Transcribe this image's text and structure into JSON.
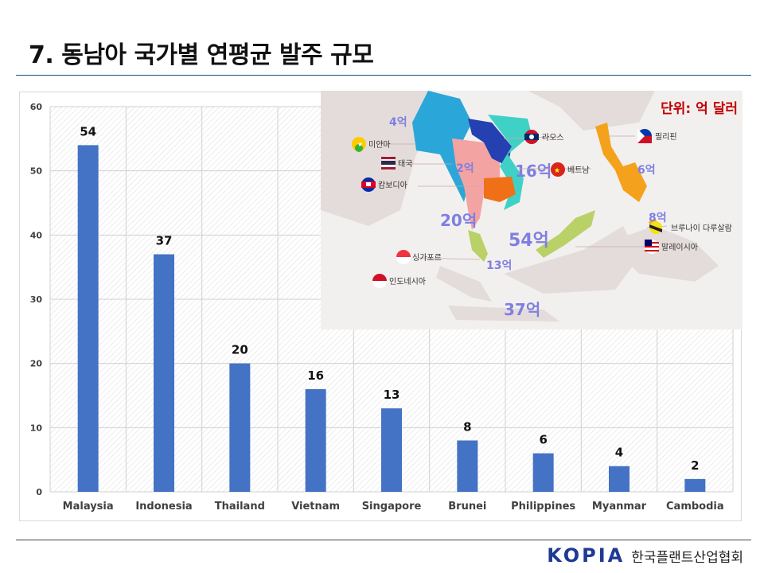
{
  "page": {
    "title": "7. 동남아 국가별 연평균 발주 규모"
  },
  "footer": {
    "logo_text": "KOPIA",
    "org_name": "한국플랜트산업협회"
  },
  "colors": {
    "bar": "#4472c4",
    "title_rule": "#1f4e79",
    "unit_text": "#c00000",
    "label_blue": "#7f7fe0"
  },
  "inset_map": {
    "unit_label": "단위: 억 달러",
    "countries": [
      {
        "name": "미얀마",
        "value_label": "4억",
        "flag": "myanmar-flag-icon"
      },
      {
        "name": "태국",
        "value_label": "20억",
        "flag": "thailand-flag-icon"
      },
      {
        "name": "캄보디아",
        "value_label": "2억",
        "flag": "cambodia-flag-icon"
      },
      {
        "name": "라오스",
        "value_label": "",
        "flag": "laos-flag-icon"
      },
      {
        "name": "베트남",
        "value_label": "16억",
        "flag": "vietnam-flag-icon"
      },
      {
        "name": "필리핀",
        "value_label": "6억",
        "flag": "philippines-flag-icon"
      },
      {
        "name": "브루나이 다루살람",
        "value_label": "8억",
        "flag": "brunei-flag-icon"
      },
      {
        "name": "말레이시아",
        "value_label": "54억",
        "flag": "malaysia-flag-icon"
      },
      {
        "name": "싱가포르",
        "value_label": "13억",
        "flag": "singapore-flag-icon"
      },
      {
        "name": "인도네시아",
        "value_label": "37억",
        "flag": "indonesia-flag-icon"
      }
    ]
  },
  "chart_data": {
    "type": "bar",
    "categories": [
      "Malaysia",
      "Indonesia",
      "Thailand",
      "Vietnam",
      "Singapore",
      "Brunei",
      "Philippines",
      "Myanmar",
      "Cambodia"
    ],
    "values": [
      54,
      37,
      20,
      16,
      13,
      8,
      6,
      4,
      2
    ],
    "ylim": [
      0,
      60
    ],
    "yticks": [
      0,
      10,
      20,
      30,
      40,
      50,
      60
    ],
    "grid": true,
    "data_labels": true
  }
}
